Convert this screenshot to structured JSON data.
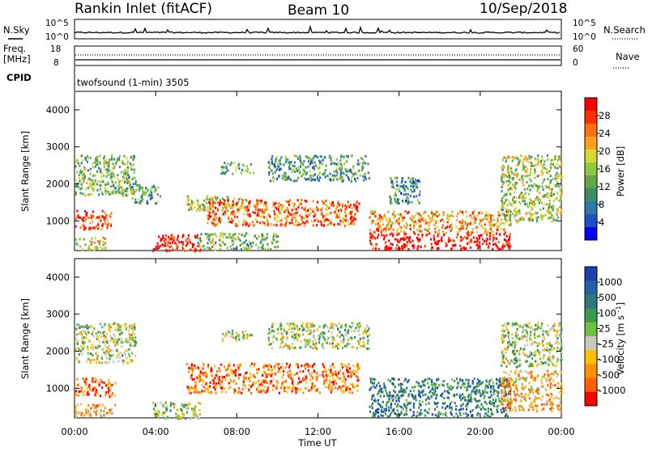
{
  "header": {
    "station": "Rankin Inlet (fitACF)",
    "beam": "Beam 10",
    "date": "10/Sep/2018"
  },
  "top_panels": {
    "nsky_label": "N.Sky",
    "nsky_ticks": [
      "10^5",
      "10^0"
    ],
    "nsearch_label": "N.Search",
    "nsearch_ticks": [
      "10^5",
      "10^0"
    ],
    "freq_label_1": "Freq.",
    "freq_label_2": "[MHz]",
    "freq_ticks": [
      "18",
      "8"
    ],
    "nave_label": "Nave",
    "nave_ticks": [
      "60",
      "0"
    ],
    "cpid_label": "CPID",
    "cpid_text": "twofsound (1-min) 3505"
  },
  "chart_data": [
    {
      "type": "heatmap",
      "name": "power-panel",
      "ylabel": "Slant Range [km]",
      "xlabel": "",
      "x_ticks": [
        "00:00",
        "04:00",
        "08:00",
        "12:00",
        "16:00",
        "20:00",
        "00:00"
      ],
      "y_ticks": [
        "1000",
        "2000",
        "3000",
        "4000"
      ],
      "ylim": [
        200,
        4500
      ],
      "xlim_hours": [
        0,
        24
      ],
      "colorbar": {
        "label": "Power [dB]",
        "ticks": [
          "4",
          "8",
          "12",
          "16",
          "20",
          "24",
          "28"
        ],
        "colors": [
          "#0000ff",
          "#1f50c8",
          "#2e7aa6",
          "#3a8f68",
          "#5ea84a",
          "#8ccb3e",
          "#d8d830",
          "#ffa020",
          "#ff7010",
          "#ff3000",
          "#ff0000"
        ]
      },
      "regions": [
        {
          "t0": 0.0,
          "t1": 3.0,
          "r0": 1700,
          "r1": 2800,
          "level": 0.45
        },
        {
          "t0": 0.0,
          "t1": 1.8,
          "r0": 800,
          "r1": 1300,
          "level": 0.85
        },
        {
          "t0": 0.0,
          "t1": 1.5,
          "r0": 250,
          "r1": 600,
          "level": 0.6
        },
        {
          "t0": 2.8,
          "t1": 4.2,
          "r0": 1500,
          "r1": 2000,
          "level": 0.35
        },
        {
          "t0": 3.8,
          "t1": 6.2,
          "r0": 200,
          "r1": 650,
          "level": 0.95
        },
        {
          "t0": 5.5,
          "t1": 8.5,
          "r0": 1300,
          "r1": 1700,
          "level": 0.55
        },
        {
          "t0": 6.5,
          "t1": 14.0,
          "r0": 900,
          "r1": 1600,
          "level": 0.8
        },
        {
          "t0": 6.0,
          "t1": 10.0,
          "r0": 250,
          "r1": 700,
          "level": 0.45
        },
        {
          "t0": 7.2,
          "t1": 8.8,
          "r0": 2300,
          "r1": 2600,
          "level": 0.4
        },
        {
          "t0": 9.5,
          "t1": 14.5,
          "r0": 2100,
          "r1": 2800,
          "level": 0.35
        },
        {
          "t0": 14.5,
          "t1": 21.5,
          "r0": 250,
          "r1": 700,
          "level": 1.0
        },
        {
          "t0": 14.5,
          "t1": 21.5,
          "r0": 700,
          "r1": 1300,
          "level": 0.7
        },
        {
          "t0": 15.5,
          "t1": 17.0,
          "r0": 1500,
          "r1": 2200,
          "level": 0.3
        },
        {
          "t0": 21.0,
          "t1": 24.0,
          "r0": 1000,
          "r1": 2800,
          "level": 0.5
        }
      ]
    },
    {
      "type": "heatmap",
      "name": "velocity-panel",
      "ylabel": "Slant Range [km]",
      "xlabel": "Time UT",
      "x_ticks": [
        "00:00",
        "04:00",
        "08:00",
        "12:00",
        "16:00",
        "20:00",
        "00:00"
      ],
      "y_ticks": [
        "1000",
        "2000",
        "3000",
        "4000"
      ],
      "ylim": [
        200,
        4500
      ],
      "xlim_hours": [
        0,
        24
      ],
      "colorbar": {
        "label": "Velocity [m s^-1]",
        "ticks": [
          "1000",
          "500",
          "100",
          "25",
          "-25",
          "-100",
          "-500",
          "-1000"
        ],
        "colors": [
          "#1e3fb0",
          "#2460a8",
          "#2e7a7a",
          "#3b9a4e",
          "#6cc03c",
          "#c8c8c0",
          "#ffc000",
          "#ff9000",
          "#ff6000",
          "#ff0000"
        ]
      },
      "regions": [
        {
          "t0": 0.0,
          "t1": 3.0,
          "r0": 1700,
          "r1": 2800,
          "level": 0.5
        },
        {
          "t0": 0.0,
          "t1": 2.0,
          "r0": 800,
          "r1": 1300,
          "level": 0.15
        },
        {
          "t0": 0.0,
          "t1": 2.0,
          "r0": 250,
          "r1": 600,
          "level": 0.3
        },
        {
          "t0": 3.8,
          "t1": 6.2,
          "r0": 200,
          "r1": 650,
          "level": 0.5
        },
        {
          "t0": 5.5,
          "t1": 14.0,
          "r0": 900,
          "r1": 1700,
          "level": 0.2
        },
        {
          "t0": 7.2,
          "t1": 8.8,
          "r0": 2300,
          "r1": 2600,
          "level": 0.5
        },
        {
          "t0": 9.5,
          "t1": 14.5,
          "r0": 2100,
          "r1": 2800,
          "level": 0.5
        },
        {
          "t0": 14.5,
          "t1": 21.5,
          "r0": 250,
          "r1": 1300,
          "level": 0.75
        },
        {
          "t0": 21.0,
          "t1": 24.0,
          "r0": 1600,
          "r1": 2800,
          "level": 0.5
        },
        {
          "t0": 21.0,
          "t1": 24.0,
          "r0": 400,
          "r1": 1500,
          "level": 0.3
        }
      ]
    }
  ]
}
